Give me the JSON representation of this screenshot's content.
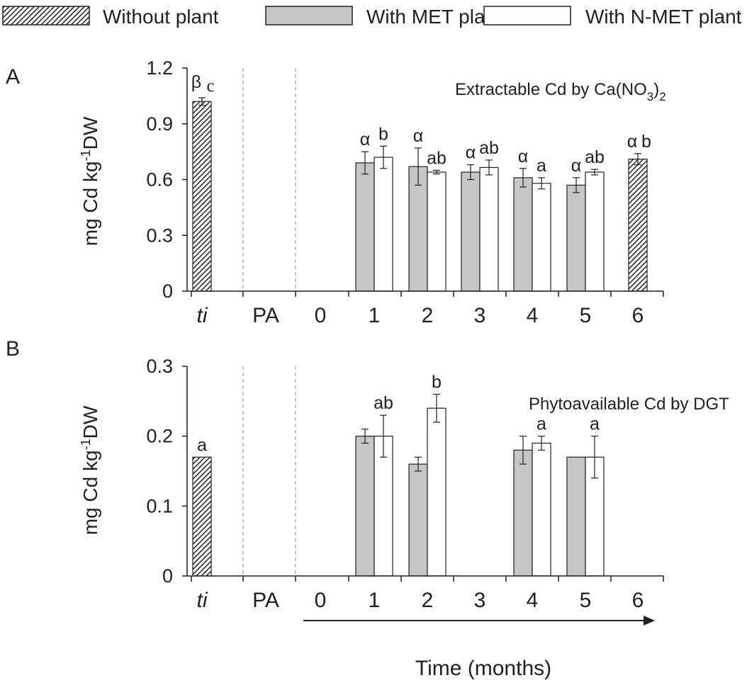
{
  "legend": [
    {
      "key": "without",
      "label": "Without plant"
    },
    {
      "key": "met",
      "label": "With MET plant"
    },
    {
      "key": "nmet",
      "label": "With N-MET plant"
    }
  ],
  "colors": {
    "met": "#c6c6c6",
    "nmet": "#ffffff",
    "hatch": "#231f20",
    "axis": "#231f20"
  },
  "xaxis_label": "Time (months)",
  "chart_data": [
    {
      "type": "bar",
      "panel": "A",
      "annotation_prefix": "Extractable Cd by Ca(NO",
      "annotation_sub": "3",
      "annotation_suffix": ")",
      "annotation_sub2": "2",
      "ylabel_pre": "mg Cd kg",
      "ylabel_sup": "-1",
      "ylabel_post": "DW",
      "ylim": [
        0,
        1.2
      ],
      "yticks": [
        {
          "v": 0,
          "label": "0"
        },
        {
          "v": 0.3,
          "label": "0.3"
        },
        {
          "v": 0.6,
          "label": "0.6"
        },
        {
          "v": 0.9,
          "label": "0.9"
        },
        {
          "v": 1.2,
          "label": "1.2"
        }
      ],
      "categories": [
        "ti",
        "PA",
        "0",
        "1",
        "2",
        "3",
        "4",
        "5",
        "6"
      ],
      "bars": [
        {
          "cat": "ti",
          "series": "without",
          "value": 1.02,
          "err": 0.02,
          "labels": [
            "β",
            "c"
          ]
        },
        {
          "cat": "1",
          "series": "met",
          "value": 0.69,
          "err": 0.06,
          "labels": [
            "α"
          ]
        },
        {
          "cat": "1",
          "series": "nmet",
          "value": 0.72,
          "err": 0.06,
          "labels": [
            "b"
          ]
        },
        {
          "cat": "2",
          "series": "met",
          "value": 0.67,
          "err": 0.1,
          "labels": [
            "α"
          ]
        },
        {
          "cat": "2",
          "series": "nmet",
          "value": 0.64,
          "err": 0.01,
          "labels": [
            "ab"
          ]
        },
        {
          "cat": "3",
          "series": "met",
          "value": 0.64,
          "err": 0.04,
          "labels": [
            "α"
          ]
        },
        {
          "cat": "3",
          "series": "nmet",
          "value": 0.665,
          "err": 0.04,
          "labels": [
            "ab"
          ]
        },
        {
          "cat": "4",
          "series": "met",
          "value": 0.61,
          "err": 0.05,
          "labels": [
            "α"
          ]
        },
        {
          "cat": "4",
          "series": "nmet",
          "value": 0.58,
          "err": 0.03,
          "labels": [
            "a"
          ]
        },
        {
          "cat": "5",
          "series": "met",
          "value": 0.57,
          "err": 0.04,
          "labels": [
            "α"
          ]
        },
        {
          "cat": "5",
          "series": "nmet",
          "value": 0.64,
          "err": 0.015,
          "labels": [
            "ab"
          ]
        },
        {
          "cat": "6",
          "series": "without",
          "value": 0.71,
          "err": 0.03,
          "labels": [
            "α",
            "b"
          ]
        }
      ]
    },
    {
      "type": "bar",
      "panel": "B",
      "annotation": "Phytoavailable Cd by DGT",
      "ylabel_pre": "mg Cd kg",
      "ylabel_sup": "-1",
      "ylabel_post": "DW",
      "ylim": [
        0,
        0.3
      ],
      "yticks": [
        {
          "v": 0,
          "label": "0"
        },
        {
          "v": 0.1,
          "label": "0.1"
        },
        {
          "v": 0.2,
          "label": "0.2"
        },
        {
          "v": 0.3,
          "label": "0.3"
        }
      ],
      "categories": [
        "ti",
        "PA",
        "0",
        "1",
        "2",
        "3",
        "4",
        "5",
        "6"
      ],
      "bars": [
        {
          "cat": "ti",
          "series": "without",
          "value": 0.17,
          "err": 0,
          "labels": [
            "a"
          ]
        },
        {
          "cat": "1",
          "series": "met",
          "value": 0.2,
          "err": 0.01,
          "labels": []
        },
        {
          "cat": "1",
          "series": "nmet",
          "value": 0.2,
          "err": 0.03,
          "labels": [
            "ab"
          ]
        },
        {
          "cat": "2",
          "series": "met",
          "value": 0.16,
          "err": 0.01,
          "labels": []
        },
        {
          "cat": "2",
          "series": "nmet",
          "value": 0.24,
          "err": 0.02,
          "labels": [
            "b"
          ]
        },
        {
          "cat": "4",
          "series": "met",
          "value": 0.18,
          "err": 0.02,
          "labels": []
        },
        {
          "cat": "4",
          "series": "nmet",
          "value": 0.19,
          "err": 0.01,
          "labels": [
            "a"
          ]
        },
        {
          "cat": "5",
          "series": "met",
          "value": 0.17,
          "err": 0,
          "labels": []
        },
        {
          "cat": "5",
          "series": "nmet",
          "value": 0.17,
          "err": 0.03,
          "labels": [
            "a"
          ]
        }
      ]
    }
  ]
}
